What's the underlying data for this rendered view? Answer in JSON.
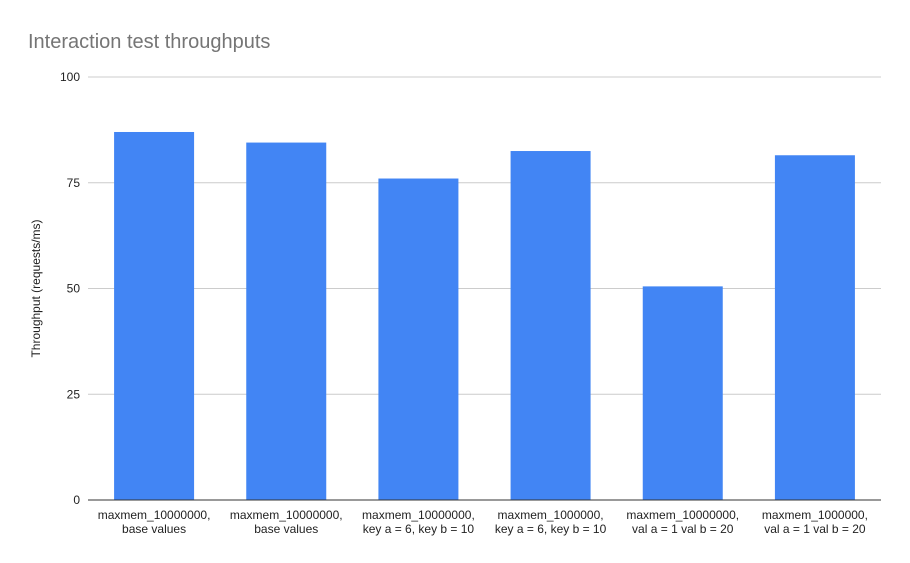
{
  "chart_data": {
    "type": "bar",
    "title": "Interaction test throughputs",
    "xlabel": "",
    "ylabel": "Throughput (requests/ms)",
    "ylim": [
      0,
      100
    ],
    "yticks": [
      0,
      25,
      50,
      75,
      100
    ],
    "grid": true,
    "legend": "none",
    "bar_color": "#4285f4",
    "categories": [
      [
        "maxmem_10000000,",
        "base values"
      ],
      [
        "maxmem_10000000,",
        "base values"
      ],
      [
        "maxmem_10000000,",
        "key a = 6, key b = 10"
      ],
      [
        "maxmem_1000000,",
        "key a = 6, key b = 10"
      ],
      [
        "maxmem_10000000,",
        "val a = 1 val b = 20"
      ],
      [
        "maxmem_1000000,",
        "val a = 1 val b = 20"
      ]
    ],
    "values": [
      87,
      84.5,
      76,
      82.5,
      50.5,
      81.5
    ]
  }
}
